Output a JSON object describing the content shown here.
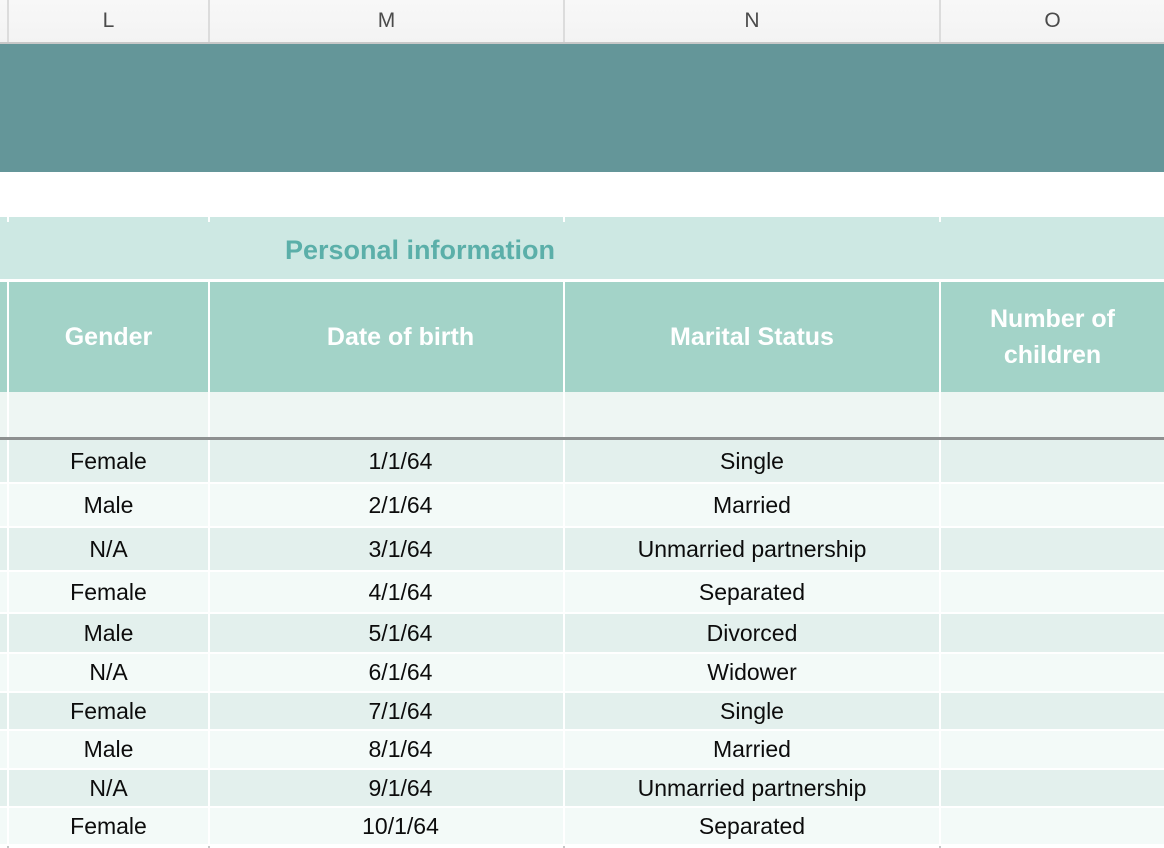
{
  "columns_bar": {
    "letters": [
      "L",
      "M",
      "N",
      "O"
    ]
  },
  "table": {
    "title": "Personal information",
    "headers": {
      "gender": "Gender",
      "date_of_birth": "Date of birth",
      "marital_status": "Marital Status",
      "number_of_children": "Number of children"
    },
    "rows": [
      {
        "gender": "Female",
        "date_of_birth": "1/1/64",
        "marital_status": "Single",
        "number_of_children": ""
      },
      {
        "gender": "Male",
        "date_of_birth": "2/1/64",
        "marital_status": "Married",
        "number_of_children": ""
      },
      {
        "gender": "N/A",
        "date_of_birth": "3/1/64",
        "marital_status": "Unmarried partnership",
        "number_of_children": ""
      },
      {
        "gender": "Female",
        "date_of_birth": "4/1/64",
        "marital_status": "Separated",
        "number_of_children": ""
      },
      {
        "gender": "Male",
        "date_of_birth": "5/1/64",
        "marital_status": "Divorced",
        "number_of_children": ""
      },
      {
        "gender": "N/A",
        "date_of_birth": "6/1/64",
        "marital_status": "Widower",
        "number_of_children": ""
      },
      {
        "gender": "Female",
        "date_of_birth": "7/1/64",
        "marital_status": "Single",
        "number_of_children": ""
      },
      {
        "gender": "Male",
        "date_of_birth": "8/1/64",
        "marital_status": "Married",
        "number_of_children": ""
      },
      {
        "gender": "N/A",
        "date_of_birth": "9/1/64",
        "marital_status": "Unmarried partnership",
        "number_of_children": ""
      },
      {
        "gender": "Female",
        "date_of_birth": "10/1/64",
        "marital_status": "Separated",
        "number_of_children": ""
      }
    ]
  },
  "colors": {
    "top_banner": "#649699",
    "header_cell": "#a3d3c8",
    "title_band": "#cde8e3",
    "title_text": "#5bafa9",
    "row_tint": "#e3f0ed",
    "row_light": "#f3faf8",
    "freeze_divider": "#8d9090",
    "column_bar_bg": "#f5f5f5"
  }
}
